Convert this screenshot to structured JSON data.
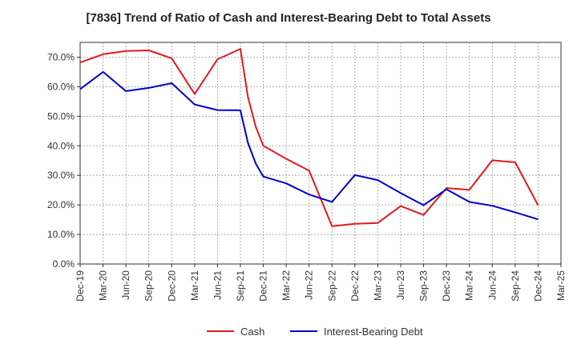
{
  "chart_data": {
    "type": "line",
    "title": "[7836]  Trend of Ratio of Cash and Interest-Bearing Debt to Total Assets",
    "xlabel": "",
    "ylabel": "",
    "categories": [
      "Dec-19",
      "Mar-20",
      "Jun-20",
      "Sep-20",
      "Dec-20",
      "Mar-21",
      "Jun-21",
      "Sep-21",
      "Dec-21",
      "Mar-22",
      "Jun-22",
      "Sep-22",
      "Dec-22",
      "Mar-23",
      "Jun-23",
      "Sep-23",
      "Dec-23",
      "Mar-24",
      "Jun-24",
      "Sep-24",
      "Dec-24",
      "Mar-25"
    ],
    "yticks": [
      "0.0%",
      "10.0%",
      "20.0%",
      "30.0%",
      "40.0%",
      "50.0%",
      "60.0%",
      "70.0%"
    ],
    "ylim": [
      0,
      75
    ],
    "grid": true,
    "legend_position": "bottom",
    "series": [
      {
        "name": "Cash",
        "color": "#e31a1c",
        "points": [
          [
            0,
            68.2
          ],
          [
            1,
            71.0
          ],
          [
            2,
            72.1
          ],
          [
            3,
            72.3
          ],
          [
            4,
            69.6
          ],
          [
            5,
            57.5
          ],
          [
            6,
            69.3
          ],
          [
            7,
            72.8
          ],
          [
            7.33,
            56.5
          ],
          [
            7.67,
            46.5
          ],
          [
            8,
            40.0
          ],
          [
            9,
            35.6
          ],
          [
            10,
            31.6
          ],
          [
            11,
            12.8
          ],
          [
            12,
            13.6
          ],
          [
            13,
            13.9
          ],
          [
            14,
            19.6
          ],
          [
            15,
            16.6
          ],
          [
            16,
            25.7
          ],
          [
            17,
            25.1
          ],
          [
            18,
            35.1
          ],
          [
            19,
            34.4
          ],
          [
            20,
            19.9
          ]
        ]
      },
      {
        "name": "Interest-Bearing Debt",
        "color": "#0000cc",
        "points": [
          [
            0,
            59.2
          ],
          [
            1,
            65.0
          ],
          [
            2,
            58.5
          ],
          [
            3,
            59.6
          ],
          [
            4,
            61.2
          ],
          [
            5,
            54.0
          ],
          [
            6,
            52.1
          ],
          [
            7,
            52.0
          ],
          [
            7.33,
            41.0
          ],
          [
            7.67,
            34.0
          ],
          [
            8,
            29.6
          ],
          [
            9,
            27.3
          ],
          [
            10,
            23.5
          ],
          [
            11,
            21.0
          ],
          [
            12,
            30.1
          ],
          [
            13,
            28.4
          ],
          [
            14,
            24.0
          ],
          [
            15,
            19.9
          ],
          [
            16,
            25.3
          ],
          [
            17,
            21.0
          ],
          [
            18,
            19.7
          ],
          [
            19,
            17.5
          ],
          [
            20,
            15.1
          ]
        ]
      }
    ]
  }
}
